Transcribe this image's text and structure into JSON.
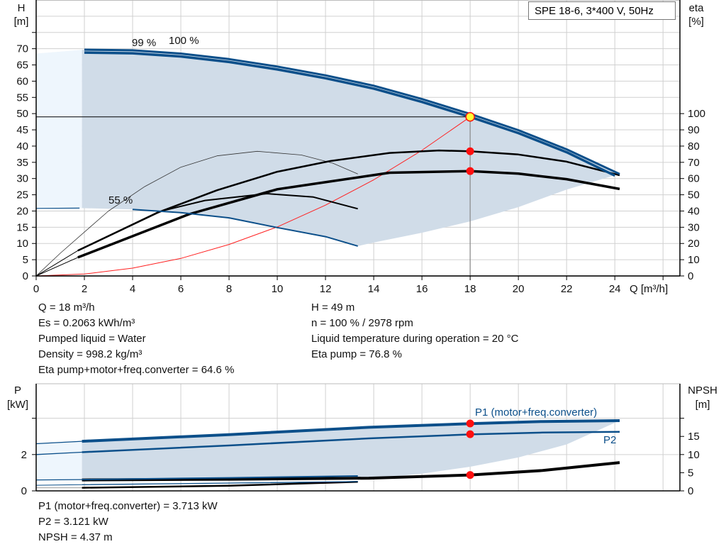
{
  "title_box": "SPE 18-6, 3*400 V, 50Hz",
  "colors": {
    "curve_blue": "#0b4f8a",
    "fill": "#d0dce8",
    "fill_light": "#eef6fd",
    "system_curve": "#ff2020",
    "marker": "#ff1010",
    "duty_point": "#ffff33",
    "grid": "#d0d0d0"
  },
  "info_top": {
    "left": [
      "Q = 18 m³/h",
      "Es = 0.2063 kWh/m³",
      "Pumped liquid = Water",
      "Density = 998.2 kg/m³",
      "Eta pump+motor+freq.converter = 64.6 %"
    ],
    "right": [
      "H = 49 m",
      "n = 100 % / 2978 rpm",
      "Liquid temperature during operation = 20 °C",
      "Eta pump = 76.8 %"
    ]
  },
  "info_bottom": [
    "P1 (motor+freq.converter) = 3.713 kW",
    "P2 = 3.121 kW",
    "NPSH = 4.37 m"
  ],
  "chart_data": [
    {
      "type": "line",
      "xlabel": "Q [m³/h]",
      "ylabel": [
        "H",
        "[m]"
      ],
      "y2label": [
        "eta",
        "[%]"
      ],
      "xlim": [
        0,
        26.7
      ],
      "ylim": [
        0,
        85
      ],
      "y2lim": [
        0,
        170
      ],
      "xticks": [
        0,
        2,
        4,
        6,
        8,
        10,
        12,
        14,
        16,
        18,
        20,
        22,
        24
      ],
      "yticks": [
        0,
        5,
        10,
        15,
        20,
        25,
        30,
        35,
        40,
        45,
        50,
        55,
        60,
        65,
        70
      ],
      "y2ticks": [
        0,
        10,
        20,
        30,
        40,
        50,
        60,
        70,
        80,
        90,
        100
      ],
      "grid": true,
      "labels": {
        "speed_100": "100 %",
        "speed_99": "99 %",
        "speed_55": "55 %"
      },
      "series": {
        "head_100": [
          [
            0,
            68.5
          ],
          [
            2,
            69.7
          ],
          [
            4,
            69.5
          ],
          [
            6,
            68.5
          ],
          [
            8,
            66.8
          ],
          [
            10,
            64.5
          ],
          [
            12,
            61.8
          ],
          [
            14,
            58.6
          ],
          [
            16,
            54.5
          ],
          [
            18,
            49.9
          ],
          [
            20,
            44.9
          ],
          [
            22,
            39
          ],
          [
            24.2,
            31.4
          ]
        ],
        "head_99": [
          [
            0,
            67.5
          ],
          [
            2,
            68.8
          ],
          [
            4,
            68.6
          ],
          [
            6,
            67.6
          ],
          [
            8,
            65.9
          ],
          [
            10,
            63.6
          ],
          [
            12,
            60.9
          ],
          [
            14,
            57.7
          ],
          [
            16,
            53.6
          ],
          [
            18,
            49
          ],
          [
            20,
            44
          ],
          [
            22,
            38.1
          ],
          [
            24,
            30.9
          ]
        ],
        "head_55": [
          [
            0,
            20.8
          ],
          [
            1.8,
            20.9
          ],
          [
            4,
            20.5
          ],
          [
            6,
            19.5
          ],
          [
            8,
            17.9
          ],
          [
            10,
            14.9
          ],
          [
            12,
            12.1
          ],
          [
            13.34,
            9.2
          ]
        ],
        "range_lower": [
          [
            13.34,
            9.2
          ],
          [
            14,
            10.3
          ],
          [
            16,
            13.3
          ],
          [
            18,
            16.8
          ],
          [
            20,
            21.2
          ],
          [
            22,
            26.6
          ],
          [
            24,
            31
          ]
        ],
        "eta_pump_100": [
          [
            0,
            0
          ],
          [
            1.73,
            15.6
          ],
          [
            5,
            38.8
          ],
          [
            7.5,
            52.8
          ],
          [
            10,
            64.2
          ],
          [
            12.2,
            70.8
          ],
          [
            14.66,
            75.8
          ],
          [
            16.7,
            77.3
          ],
          [
            18,
            76.8
          ],
          [
            20,
            74.8
          ],
          [
            22,
            70.4
          ],
          [
            24.2,
            62
          ]
        ],
        "eta_total_100": [
          [
            0,
            0
          ],
          [
            1.73,
            11.4
          ],
          [
            6.34,
            38
          ],
          [
            10,
            53.4
          ],
          [
            14.66,
            63.6
          ],
          [
            18,
            64.6
          ],
          [
            20,
            63
          ],
          [
            22,
            59.6
          ],
          [
            24.2,
            53.6
          ]
        ],
        "eta_pump_55": [
          [
            0,
            0
          ],
          [
            1.73,
            15.6
          ],
          [
            5.2,
            40
          ],
          [
            7,
            46.5
          ],
          [
            9.57,
            50.7
          ],
          [
            11.5,
            48.6
          ],
          [
            13.34,
            41.4
          ]
        ],
        "eta_pump_thin": [
          [
            0,
            0
          ],
          [
            1,
            14
          ],
          [
            2,
            27
          ],
          [
            3,
            40
          ],
          [
            4.5,
            55
          ],
          [
            6,
            67
          ],
          [
            7.5,
            74
          ],
          [
            9.17,
            76.8
          ],
          [
            11,
            74.5
          ],
          [
            12.3,
            69.5
          ],
          [
            13.34,
            62.8
          ]
        ],
        "system_curve": [
          [
            0,
            0
          ],
          [
            2,
            0.6
          ],
          [
            4,
            2.4
          ],
          [
            6,
            5.4
          ],
          [
            8,
            9.7
          ],
          [
            10,
            15.1
          ],
          [
            12,
            21.8
          ],
          [
            14,
            29.6
          ],
          [
            16,
            38.7
          ],
          [
            18,
            49
          ]
        ],
        "duty_point": {
          "Q": 18,
          "H": 49,
          "eta_pump": 76.8,
          "eta_total": 64.6
        }
      }
    },
    {
      "type": "line",
      "ylabel": [
        "P",
        "[kW]"
      ],
      "y2label": [
        "NPSH",
        "[m]"
      ],
      "xlim": [
        0,
        26.7
      ],
      "ylim": [
        0,
        5.9
      ],
      "y2lim": [
        0,
        29.5
      ],
      "yticks": [
        0,
        2,
        4
      ],
      "ytick_labels": [
        "0",
        "2",
        ""
      ],
      "y2ticks": [
        0,
        5,
        10,
        15,
        20
      ],
      "y2tick_labels": [
        "0",
        "5",
        "10",
        "15",
        ""
      ],
      "grid": true,
      "labels": {
        "p1": "P1 (motor+freq.converter)",
        "p2": "P2"
      },
      "series": {
        "p1_100": [
          [
            0,
            2.6
          ],
          [
            1.9,
            2.73
          ],
          [
            8,
            3.1
          ],
          [
            13.8,
            3.5
          ],
          [
            18,
            3.7
          ],
          [
            21,
            3.82
          ],
          [
            24.2,
            3.87
          ]
        ],
        "p2_100": [
          [
            0,
            2.0
          ],
          [
            1.9,
            2.13
          ],
          [
            8,
            2.5
          ],
          [
            13.8,
            2.89
          ],
          [
            18,
            3.11
          ],
          [
            21,
            3.21
          ],
          [
            24.2,
            3.25
          ]
        ],
        "p1_55": [
          [
            0,
            0.6
          ],
          [
            1.9,
            0.62
          ],
          [
            8,
            0.72
          ],
          [
            13.34,
            0.82
          ]
        ],
        "p2_55": [
          [
            0,
            0.31
          ],
          [
            1.9,
            0.34
          ],
          [
            8,
            0.43
          ],
          [
            13.34,
            0.51
          ]
        ],
        "range_lower": [
          [
            13.34,
            0.6
          ],
          [
            16,
            0.95
          ],
          [
            18,
            1.33
          ],
          [
            20,
            1.84
          ],
          [
            22,
            2.56
          ],
          [
            24.2,
            3.87
          ]
        ],
        "npsh_100": [
          [
            1.9,
            3.0
          ],
          [
            8,
            3.2
          ],
          [
            13.8,
            3.5
          ],
          [
            18,
            4.37
          ],
          [
            21,
            5.6
          ],
          [
            24.2,
            7.8
          ]
        ],
        "npsh_55": [
          [
            0,
            0.85
          ],
          [
            1.9,
            0.85
          ],
          [
            8,
            1.4
          ],
          [
            13.34,
            2.5
          ]
        ],
        "duty_point": {
          "Q": 18,
          "P1": 3.713,
          "P2": 3.121,
          "NPSH": 4.37
        }
      }
    }
  ]
}
